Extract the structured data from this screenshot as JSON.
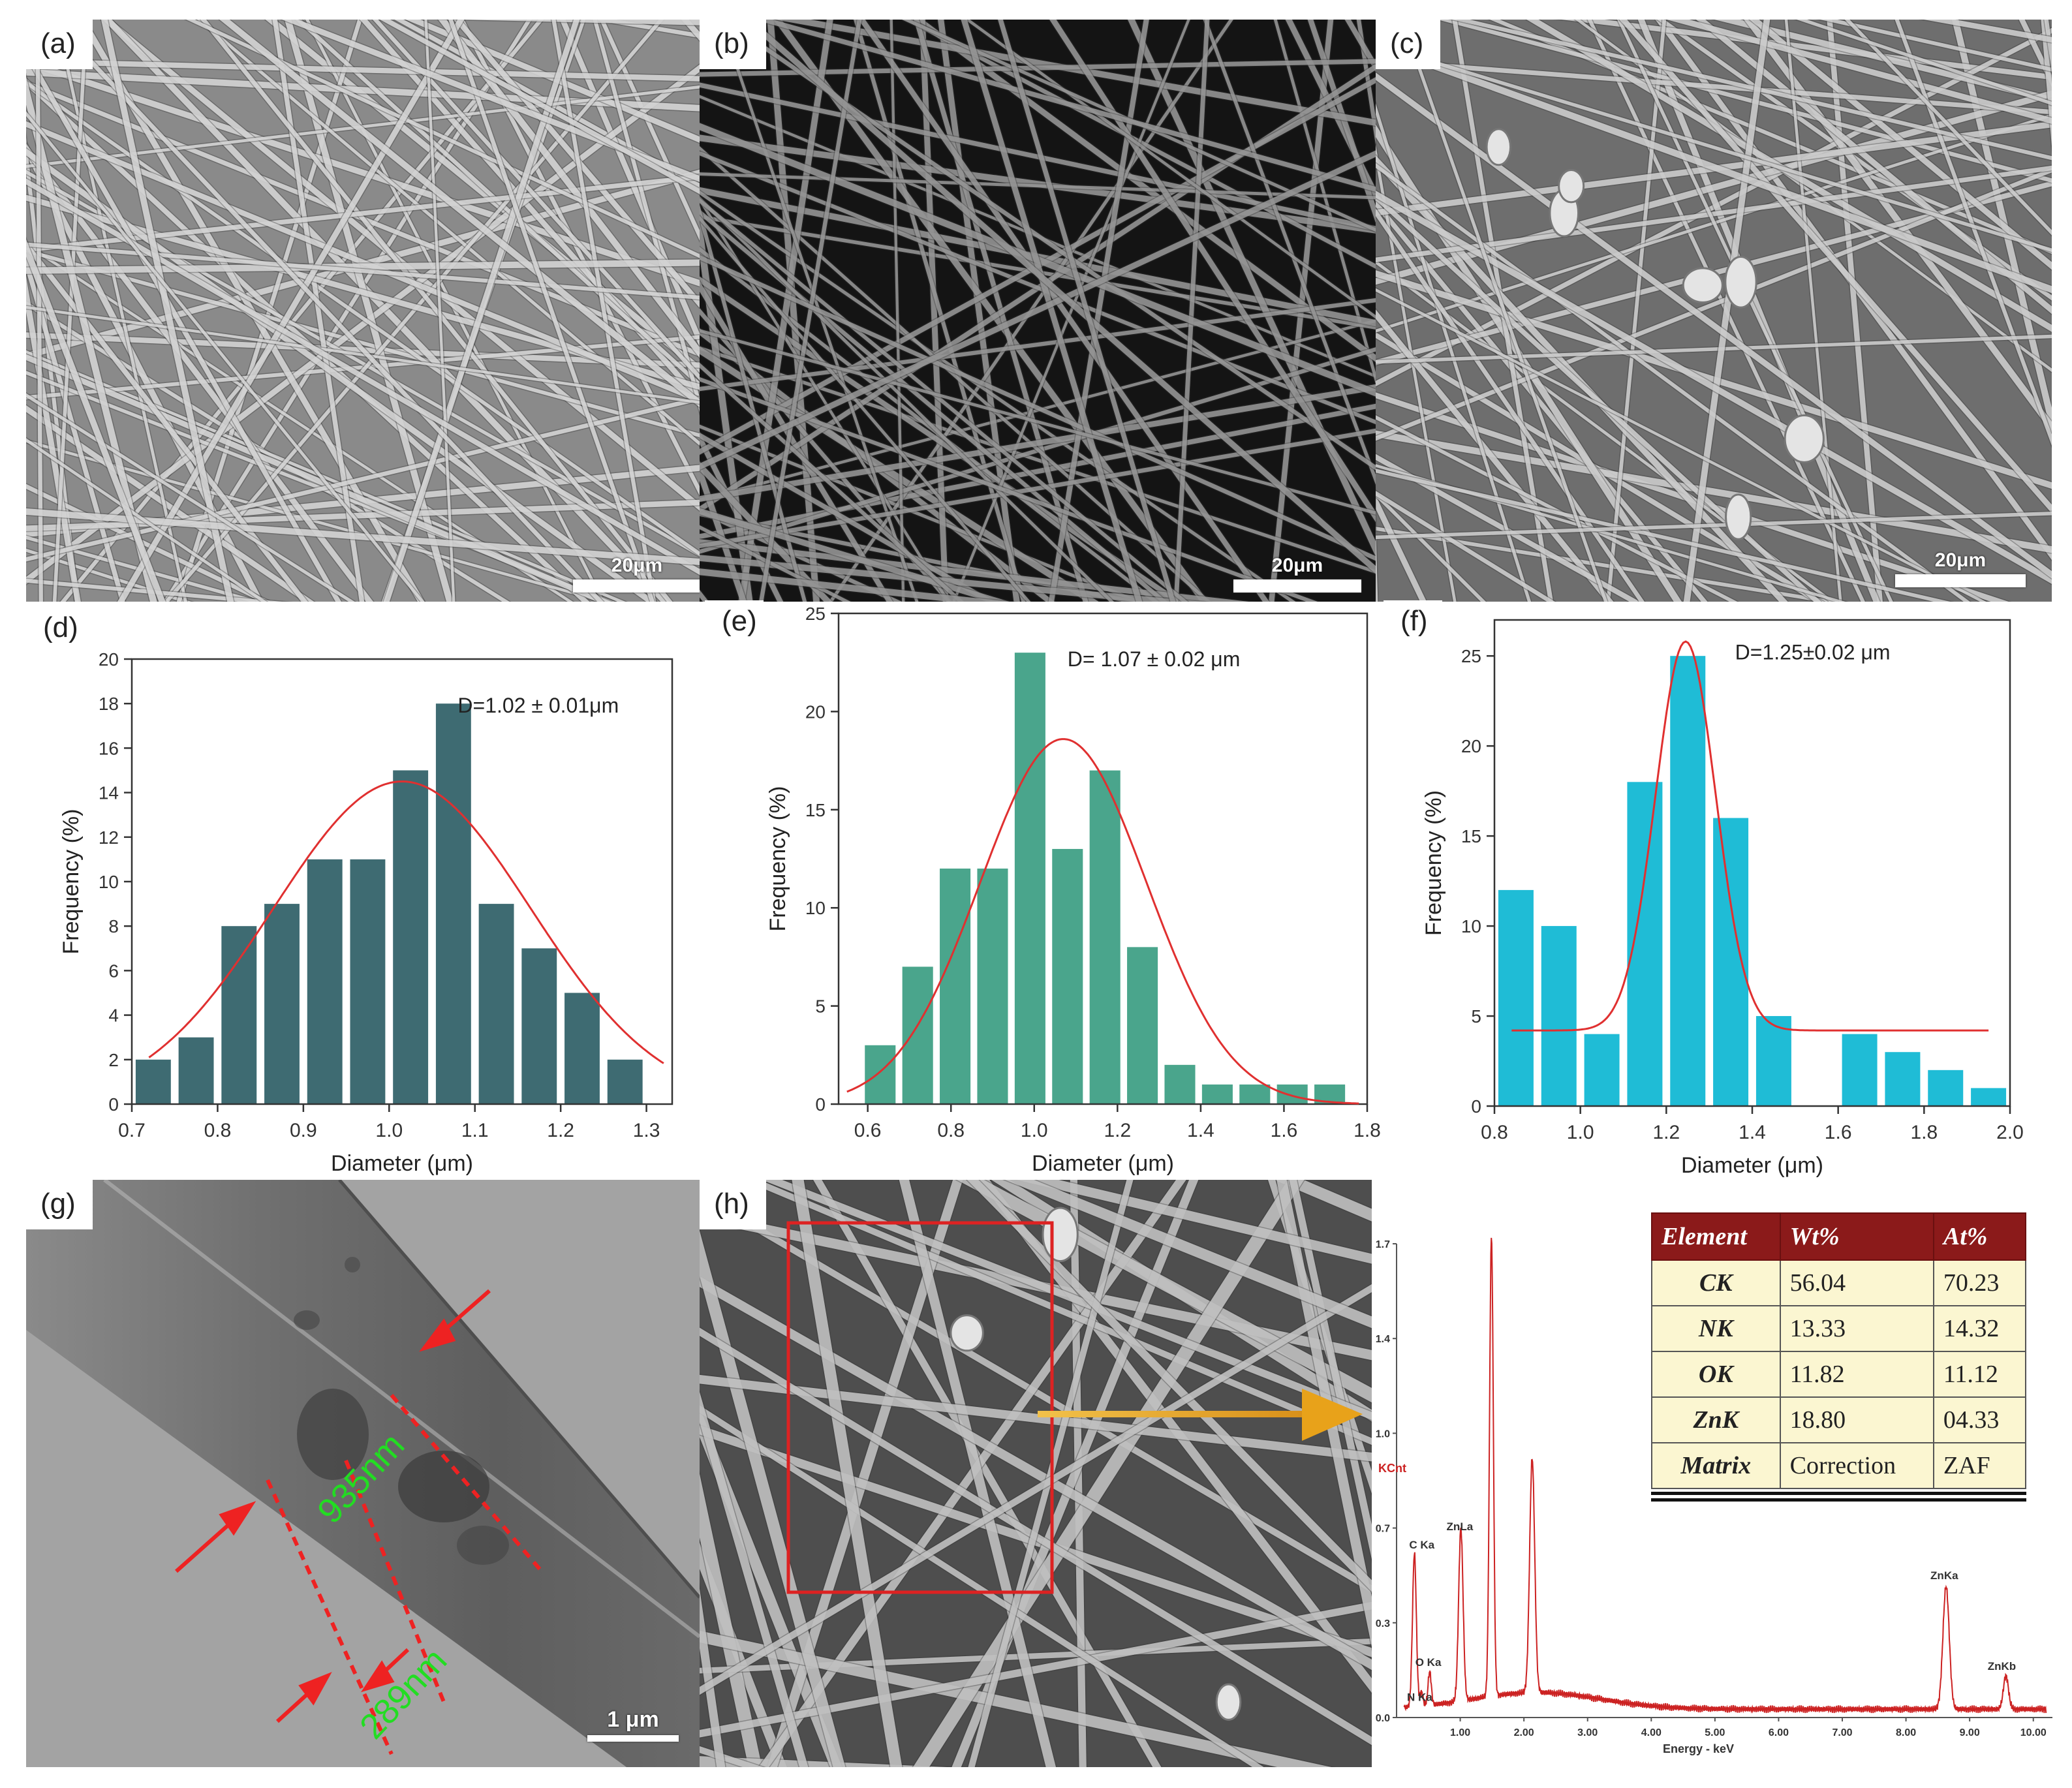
{
  "panels": {
    "a": {
      "label": "(a)",
      "scale_bar": "20μm"
    },
    "b": {
      "label": "(b)",
      "scale_bar": "20μm"
    },
    "c": {
      "label": "(c)",
      "scale_bar": "20μm"
    },
    "g": {
      "label": "(g)",
      "scale_bar": "1 μm",
      "annotation_outer": "935nm",
      "annotation_inner": "289nm"
    },
    "h": {
      "label": "(h)"
    }
  },
  "colors": {
    "d_bar": "#3e6b72",
    "e_bar": "#4aa58c",
    "f_bar": "#1fbcd6",
    "fit": "#e03030",
    "sem_bg": "#8c8c8c",
    "table_header": "#8b1a1a",
    "table_cell": "#fbf6d1",
    "annotation_arrow": "#ee2222",
    "annotation_text": "#22dd22",
    "edx_line": "#cc2222",
    "gold_arrow": "#e8a21a"
  },
  "chart_data": [
    {
      "id": "d",
      "type": "bar",
      "label": "(d)",
      "xlabel": "Diameter (μm)",
      "ylabel": "Frequency (%)",
      "annotation": "D=1.02 ± 0.01μm",
      "x": [
        0.725,
        0.775,
        0.825,
        0.875,
        0.925,
        0.975,
        1.025,
        1.075,
        1.125,
        1.175,
        1.225,
        1.275
      ],
      "values": [
        2,
        3,
        8,
        9,
        11,
        11,
        15,
        18,
        9,
        7,
        5,
        2
      ],
      "xlim": [
        0.7,
        1.33
      ],
      "ylim": [
        0,
        20
      ],
      "xticks": [
        "0.7",
        "0.8",
        "0.9",
        "1.0",
        "1.1",
        "1.2",
        "1.3"
      ],
      "xtick_values": [
        0.7,
        0.8,
        0.9,
        1.0,
        1.1,
        1.2,
        1.3
      ],
      "yticks": [
        "0",
        "2",
        "4",
        "6",
        "8",
        "10",
        "12",
        "14",
        "16",
        "18",
        "20"
      ],
      "ytick_values": [
        0,
        2,
        4,
        6,
        8,
        10,
        12,
        14,
        16,
        18,
        20
      ],
      "fit": {
        "type": "gaussian",
        "center": 1.015,
        "sigma": 0.15,
        "amplitude": 14.5,
        "baseline": 0,
        "range": [
          0.72,
          1.32
        ]
      }
    },
    {
      "id": "e",
      "type": "bar",
      "label": "(e)",
      "xlabel": "Diameter (μm)",
      "ylabel": "Frequency (%)",
      "annotation": "D= 1.07 ± 0.02 μm",
      "x": [
        0.63,
        0.72,
        0.81,
        0.9,
        0.99,
        1.08,
        1.17,
        1.26,
        1.35,
        1.44,
        1.53,
        1.62,
        1.71
      ],
      "values": [
        3,
        7,
        12,
        12,
        23,
        13,
        17,
        8,
        2,
        1,
        1,
        1,
        1
      ],
      "xlim": [
        0.53,
        1.8
      ],
      "ylim": [
        0,
        25
      ],
      "xticks": [
        "0.6",
        "0.8",
        "1.0",
        "1.2",
        "1.4",
        "1.6",
        "1.8"
      ],
      "xtick_values": [
        0.6,
        0.8,
        1.0,
        1.2,
        1.4,
        1.6,
        1.8
      ],
      "yticks": [
        "0",
        "5",
        "10",
        "15",
        "20",
        "25"
      ],
      "ytick_values": [
        0,
        5,
        10,
        15,
        20,
        25
      ],
      "fit": {
        "type": "gaussian",
        "center": 1.07,
        "sigma": 0.2,
        "amplitude": 18.6,
        "baseline": 0,
        "range": [
          0.55,
          1.78
        ]
      }
    },
    {
      "id": "f",
      "type": "bar",
      "label": "(f)",
      "xlabel": "Diameter (μm)",
      "ylabel": "Frequency (%)",
      "annotation": "D=1.25±0.02 μm",
      "x": [
        0.85,
        0.95,
        1.05,
        1.15,
        1.25,
        1.35,
        1.45,
        1.55,
        1.65,
        1.75,
        1.85,
        1.95
      ],
      "values": [
        12,
        10,
        4,
        18,
        25,
        16,
        5,
        0,
        4,
        3,
        2,
        1
      ],
      "xlim": [
        0.8,
        2.0
      ],
      "ylim": [
        0,
        27
      ],
      "xticks": [
        "0.8",
        "1.0",
        "1.2",
        "1.4",
        "1.6",
        "1.8",
        "2.0"
      ],
      "xtick_values": [
        0.8,
        1.0,
        1.2,
        1.4,
        1.6,
        1.8,
        2.0
      ],
      "yticks": [
        "0",
        "5",
        "10",
        "15",
        "20",
        "25"
      ],
      "ytick_values": [
        0,
        5,
        10,
        15,
        20,
        25
      ],
      "fit": {
        "type": "gaussian",
        "center": 1.245,
        "sigma": 0.07,
        "amplitude": 21.6,
        "baseline": 4.2,
        "range": [
          0.84,
          1.95
        ]
      }
    },
    {
      "id": "edx",
      "type": "line",
      "title": "",
      "xlabel": "Energy - keV",
      "ylabel": "KCnt",
      "xlim": [
        0,
        10.3
      ],
      "ylim": [
        0,
        1.7
      ],
      "xticks": [
        "1.00",
        "2.00",
        "3.00",
        "4.00",
        "5.00",
        "6.00",
        "7.00",
        "8.00",
        "9.00",
        "10.00"
      ],
      "xtick_values": [
        1,
        2,
        3,
        4,
        5,
        6,
        7,
        8,
        9,
        10
      ],
      "yticks": [
        "0.0",
        "0.3",
        "0.7",
        "1.0",
        "1.4",
        "1.7"
      ],
      "ytick_values": [
        0,
        0.34,
        0.68,
        1.02,
        1.36,
        1.7
      ],
      "peaks": [
        {
          "label": "C Ka",
          "energy": 0.28,
          "height": 0.55
        },
        {
          "label": "N Ka",
          "energy": 0.39,
          "height": 0.05
        },
        {
          "label": "O Ka",
          "energy": 0.52,
          "height": 0.12
        },
        {
          "label": "ZnLa",
          "energy": 1.01,
          "height": 0.62
        },
        {
          "label": "",
          "energy": 1.49,
          "height": 1.65
        },
        {
          "label": "",
          "energy": 2.13,
          "height": 0.84
        },
        {
          "label": "ZnKa",
          "energy": 8.63,
          "height": 0.44
        },
        {
          "label": "ZnKb",
          "energy": 9.57,
          "height": 0.12
        }
      ]
    }
  ],
  "edx_table": {
    "headers": [
      "Element",
      "Wt%",
      "At%"
    ],
    "rows": [
      [
        "CK",
        "56.04",
        "70.23"
      ],
      [
        "NK",
        "13.33",
        "14.32"
      ],
      [
        "OK",
        "11.82",
        "11.12"
      ],
      [
        "ZnK",
        "18.80",
        "04.33"
      ],
      [
        "Matrix",
        "Correction",
        "ZAF"
      ]
    ]
  }
}
